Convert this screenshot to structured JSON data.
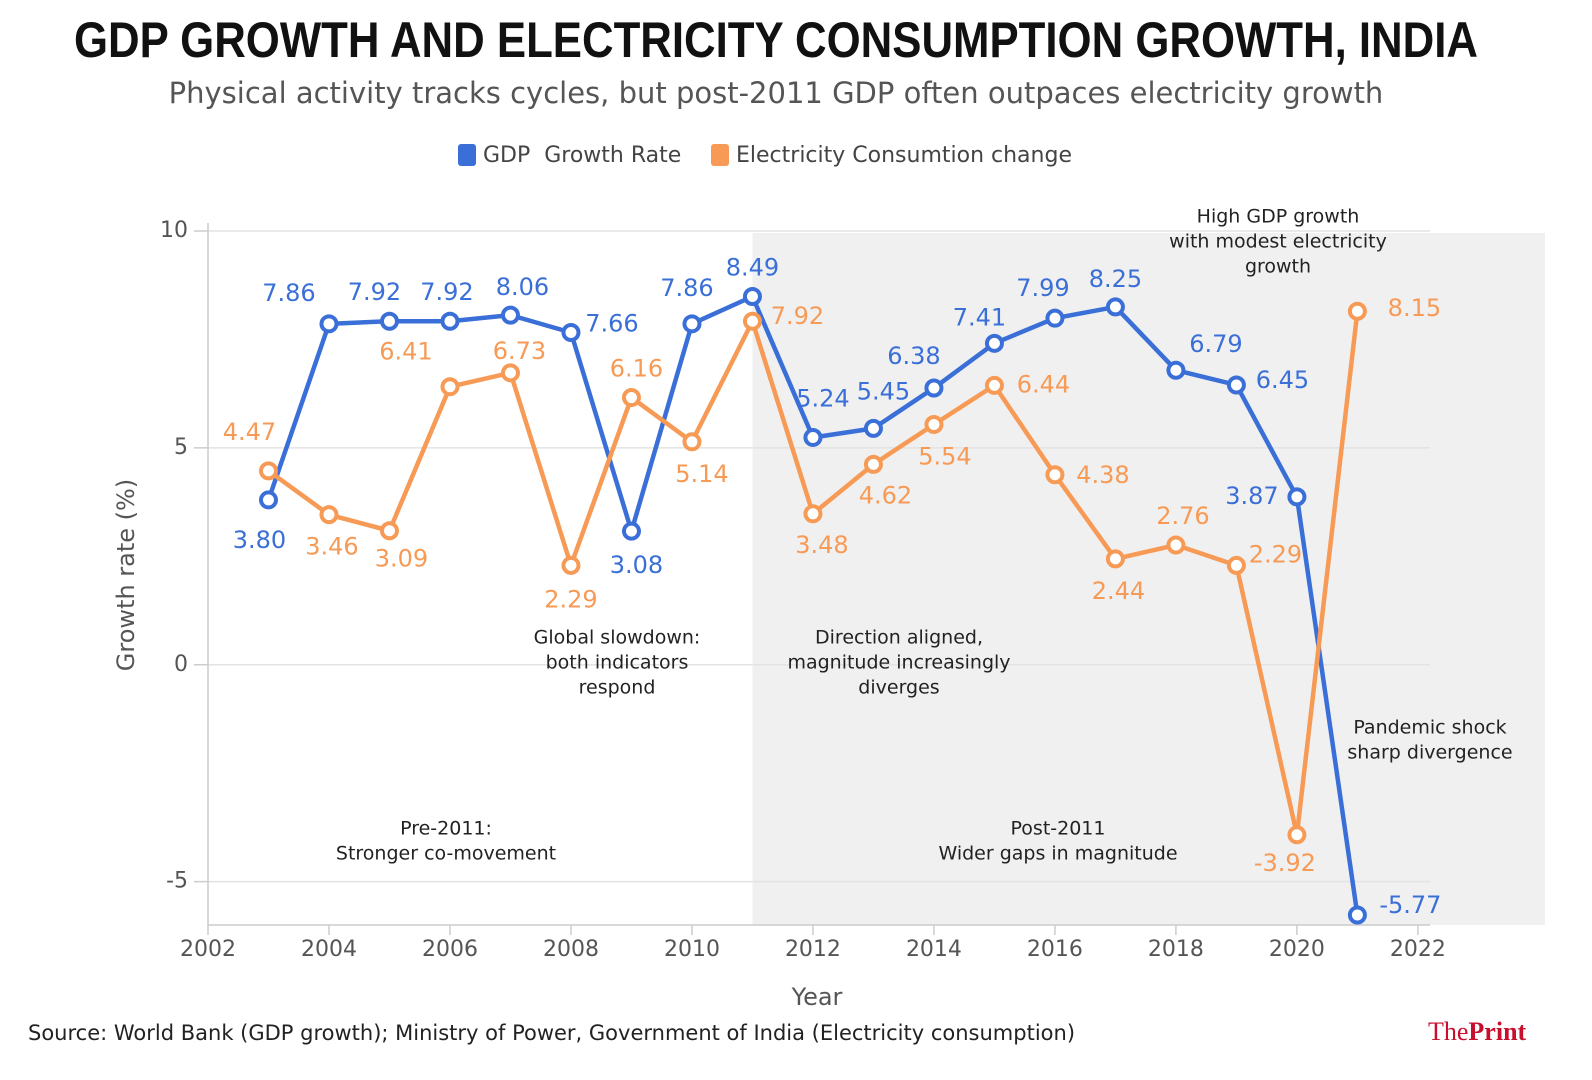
{
  "chart_data": {
    "type": "line",
    "title": "GDP GROWTH AND ELECTRICITY CONSUMPTION GROWTH, INDIA",
    "subtitle": "Physical activity tracks cycles, but post-2011 GDP often outpaces electricity growth",
    "x_label": "Year",
    "y_label": "Growth rate (%)",
    "source": "Source: World Bank (GDP growth); Ministry of Power, Government of India (Electricity consumption)",
    "logo": {
      "the": "The",
      "print": "Print"
    },
    "x": [
      2003,
      2004,
      2005,
      2006,
      2007,
      2008,
      2009,
      2010,
      2011,
      2012,
      2013,
      2014,
      2015,
      2016,
      2017,
      2018,
      2019,
      2020,
      2021
    ],
    "series": [
      {
        "name": "GDP  Growth Rate",
        "color": "#3a6fd8",
        "values": [
          3.8,
          7.86,
          7.92,
          7.92,
          8.06,
          7.66,
          3.08,
          7.86,
          8.49,
          5.24,
          5.45,
          6.38,
          7.41,
          7.99,
          8.25,
          6.79,
          6.45,
          3.87,
          -5.77
        ],
        "value_labels": [
          "3.80",
          "7.86",
          "7.92",
          "7.92",
          "8.06",
          "7.66",
          "3.08",
          "7.86",
          "8.49",
          "5.24",
          "5.45",
          "6.38",
          "7.41",
          "7.99",
          "8.25",
          "6.79",
          "6.45",
          "3.87",
          "-5.77"
        ]
      },
      {
        "name": "Electricity Consumtion change",
        "color": "#f79a55",
        "values": [
          4.47,
          3.46,
          3.09,
          6.41,
          6.73,
          2.29,
          6.16,
          5.14,
          7.92,
          3.48,
          4.62,
          5.54,
          6.44,
          4.38,
          2.44,
          2.76,
          2.29,
          -3.92,
          8.15
        ],
        "value_labels": [
          "4.47",
          "3.46",
          "3.09",
          "6.41",
          "6.73",
          "2.29",
          "6.16",
          "5.14",
          "7.92",
          "3.48",
          "4.62",
          "5.54",
          "6.44",
          "4.38",
          "2.44",
          "2.76",
          "2.29",
          "-3.92",
          "8.15"
        ]
      }
    ],
    "xlim": [
      2002,
      2022.2
    ],
    "xticks": [
      2002,
      2004,
      2006,
      2008,
      2010,
      2012,
      2014,
      2016,
      2018,
      2020,
      2022
    ],
    "ylim": [
      -6,
      10
    ],
    "yticks": [
      -5,
      0,
      5,
      10
    ],
    "grid": true,
    "legend": "top",
    "shaded_from": 2011,
    "annotations": [
      [
        "High GDP growth",
        "with modest electricity",
        "growth"
      ],
      [
        "Global slowdown:",
        "both indicators",
        "respond"
      ],
      [
        "Direction aligned,",
        "magnitude increasingly",
        "diverges"
      ],
      [
        "Pandemic shock",
        "sharp divergence"
      ],
      [
        "Pre-2011:",
        "Stronger co-movement"
      ],
      [
        "Post-2011",
        "Wider gaps in magnitude"
      ]
    ]
  }
}
